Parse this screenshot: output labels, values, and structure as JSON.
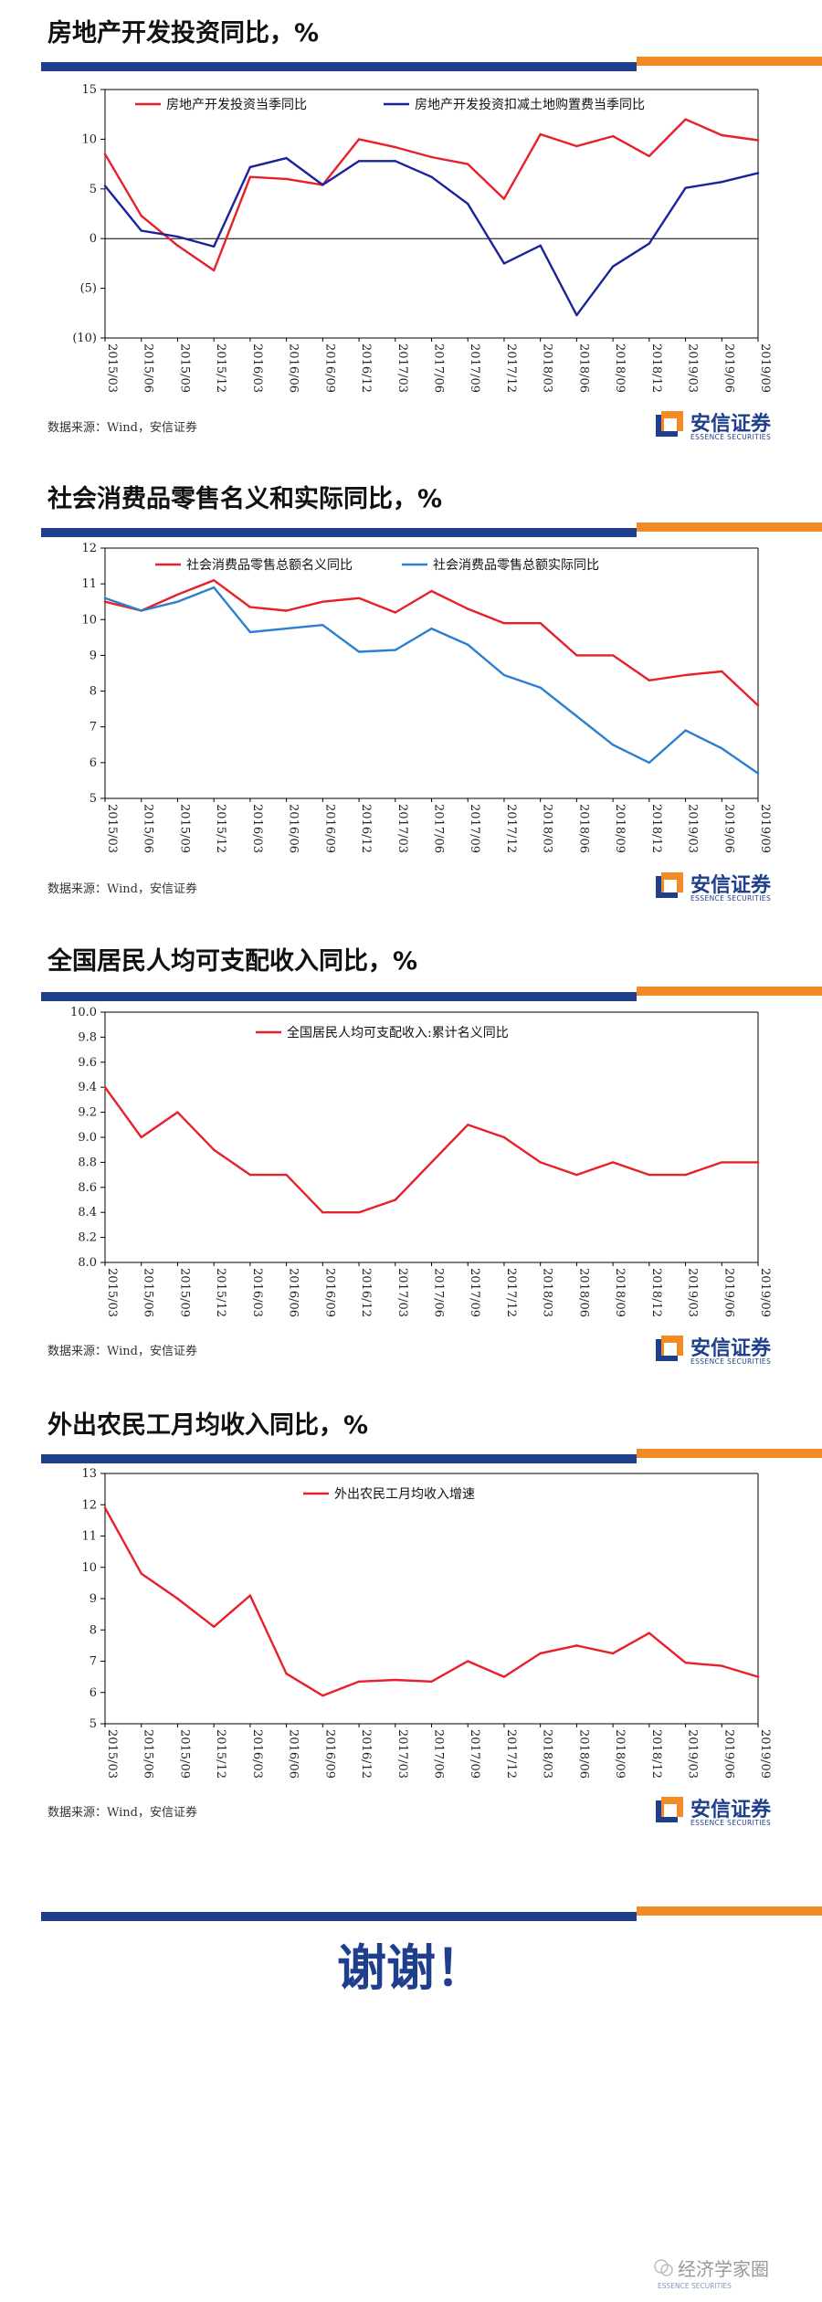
{
  "source_text": "数据来源：Wind，安信证券",
  "logo": {
    "cn": "安信证券",
    "en": "ESSENCE SECURITIES"
  },
  "closing": {
    "thanks": "谢谢！"
  },
  "watermark": {
    "text": "经济学家圈",
    "en": "ESSENCE SECURITIES"
  },
  "colors": {
    "red": "#e8202a",
    "blue": "#1a239c",
    "lightblue": "#2b7fd1",
    "navy": "#1f3e8c",
    "orange": "#f28a25"
  },
  "chart_data": [
    {
      "type": "line",
      "title": "房地产开发投资同比，%",
      "categories": [
        "2015/03",
        "2015/06",
        "2015/09",
        "2015/12",
        "2016/03",
        "2016/06",
        "2016/09",
        "2016/12",
        "2017/03",
        "2017/06",
        "2017/09",
        "2017/12",
        "2018/03",
        "2018/06",
        "2018/09",
        "2018/12",
        "2019/03",
        "2019/06",
        "2019/09"
      ],
      "ylim": [
        -10,
        15
      ],
      "yticks": [
        15,
        10,
        5,
        0,
        -5,
        -10
      ],
      "ytick_labels": [
        "15",
        "10",
        "5",
        "0",
        "(5)",
        "(10)"
      ],
      "series": [
        {
          "name": "房地产开发投资当季同比",
          "color": "#e8202a",
          "values": [
            8.5,
            2.3,
            -0.7,
            -3.2,
            6.2,
            6.0,
            5.4,
            10.0,
            9.2,
            8.2,
            7.5,
            4.0,
            10.5,
            9.3,
            10.3,
            8.3,
            12.0,
            10.4,
            9.9
          ]
        },
        {
          "name": "房地产开发投资扣减土地购置费当季同比",
          "color": "#1a239c",
          "values": [
            5.3,
            0.8,
            0.2,
            -0.8,
            7.2,
            8.1,
            5.4,
            7.8,
            7.8,
            6.2,
            3.5,
            -2.5,
            -0.7,
            -7.7,
            -2.8,
            -0.5,
            5.1,
            5.7,
            6.6
          ]
        }
      ]
    },
    {
      "type": "line",
      "title": "社会消费品零售名义和实际同比，%",
      "categories": [
        "2015/03",
        "2015/06",
        "2015/09",
        "2015/12",
        "2016/03",
        "2016/06",
        "2016/09",
        "2016/12",
        "2017/03",
        "2017/06",
        "2017/09",
        "2017/12",
        "2018/03",
        "2018/06",
        "2018/09",
        "2018/12",
        "2019/03",
        "2019/06",
        "2019/09"
      ],
      "ylim": [
        5,
        12
      ],
      "yticks": [
        12,
        11,
        10,
        9,
        8,
        7,
        6,
        5
      ],
      "ytick_labels": [
        "12",
        "11",
        "10",
        "9",
        "8",
        "7",
        "6",
        "5"
      ],
      "series": [
        {
          "name": "社会消费品零售总额名义同比",
          "color": "#e8202a",
          "values": [
            10.5,
            10.25,
            10.7,
            11.1,
            10.35,
            10.25,
            10.5,
            10.6,
            10.2,
            10.8,
            10.3,
            9.9,
            9.9,
            9.0,
            9.0,
            8.3,
            8.45,
            8.55,
            7.6
          ]
        },
        {
          "name": "社会消费品零售总额实际同比",
          "color": "#2b7fd1",
          "values": [
            10.6,
            10.25,
            10.5,
            10.9,
            9.65,
            9.75,
            9.85,
            9.1,
            9.15,
            9.75,
            9.3,
            8.45,
            8.1,
            7.3,
            6.5,
            6.0,
            6.9,
            6.4,
            5.7
          ]
        }
      ]
    },
    {
      "type": "line",
      "title": "全国居民人均可支配收入同比，%",
      "categories": [
        "2015/03",
        "2015/06",
        "2015/09",
        "2015/12",
        "2016/03",
        "2016/06",
        "2016/09",
        "2016/12",
        "2017/03",
        "2017/06",
        "2017/09",
        "2017/12",
        "2018/03",
        "2018/06",
        "2018/09",
        "2018/12",
        "2019/03",
        "2019/06",
        "2019/09"
      ],
      "ylim": [
        8.0,
        10.0
      ],
      "yticks": [
        10.0,
        9.8,
        9.6,
        9.4,
        9.2,
        9.0,
        8.8,
        8.6,
        8.4,
        8.2,
        8.0
      ],
      "ytick_labels": [
        "10.0",
        "9.8",
        "9.6",
        "9.4",
        "9.2",
        "9.0",
        "8.8",
        "8.6",
        "8.4",
        "8.2",
        "8.0"
      ],
      "series": [
        {
          "name": "全国居民人均可支配收入:累计名义同比",
          "color": "#e8202a",
          "values": [
            9.4,
            9.0,
            9.2,
            8.9,
            8.7,
            8.7,
            8.4,
            8.4,
            8.5,
            8.8,
            9.1,
            9.0,
            8.8,
            8.7,
            8.8,
            8.7,
            8.7,
            8.8,
            8.8
          ]
        }
      ]
    },
    {
      "type": "line",
      "title": "外出农民工月均收入同比，%",
      "categories": [
        "2015/03",
        "2015/06",
        "2015/09",
        "2015/12",
        "2016/03",
        "2016/06",
        "2016/09",
        "2016/12",
        "2017/03",
        "2017/06",
        "2017/09",
        "2017/12",
        "2018/03",
        "2018/06",
        "2018/09",
        "2018/12",
        "2019/03",
        "2019/06",
        "2019/09"
      ],
      "ylim": [
        5,
        13
      ],
      "yticks": [
        13,
        12,
        11,
        10,
        9,
        8,
        7,
        6,
        5
      ],
      "ytick_labels": [
        "13",
        "12",
        "11",
        "10",
        "9",
        "8",
        "7",
        "6",
        "5"
      ],
      "series": [
        {
          "name": "外出农民工月均收入增速",
          "color": "#e8202a",
          "values": [
            11.9,
            9.8,
            9.0,
            8.1,
            9.1,
            6.6,
            5.9,
            6.35,
            6.4,
            6.35,
            7.0,
            6.5,
            7.25,
            7.5,
            7.25,
            7.9,
            6.95,
            6.85,
            6.5
          ]
        }
      ]
    }
  ]
}
